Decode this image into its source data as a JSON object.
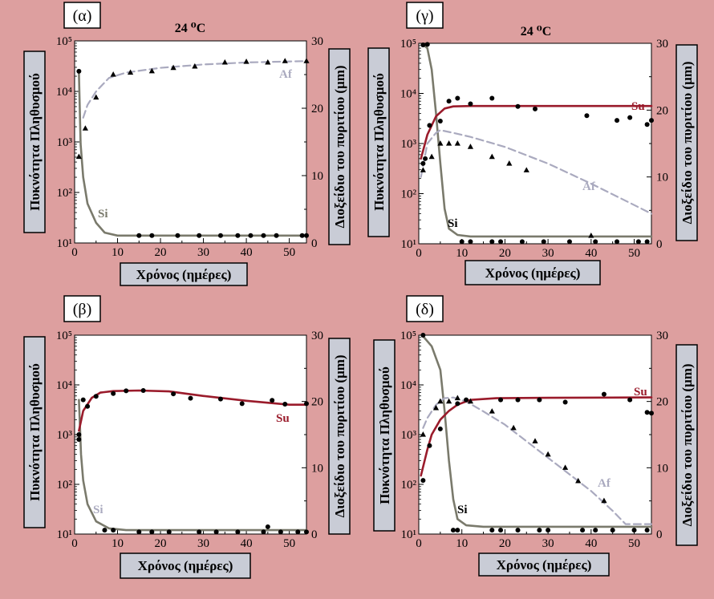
{
  "colors": {
    "background": "#dd9f9f",
    "plot_bg": "#ffffff",
    "label_box": "#c9ccd6",
    "Si": "#7a7a6c",
    "Af": "#aaaabf",
    "Su": "#9a1b2b",
    "points": "#000000"
  },
  "chart_data": [
    {
      "panel": "(α)",
      "type": "line",
      "title": "24 ⁰C",
      "xlabel": "Χρόνος (ημέρες)",
      "ylabel_left": "Πυκνότητα Πληθυσμού",
      "ylabel_right": "Διοξείδιο του πυριτίου (μm)",
      "x_ticks": [
        "0",
        "10",
        "20",
        "30",
        "40",
        "50"
      ],
      "y_left_scale": "log",
      "y_left_ticks": [
        "10¹",
        "10²",
        "10³",
        "10⁴",
        "10⁵"
      ],
      "y_right_ticks": [
        "0",
        "10",
        "20",
        "30"
      ],
      "xlim": [
        0,
        54
      ],
      "ylim_left": [
        10,
        100000
      ],
      "ylim_right": [
        0,
        30
      ],
      "series": [
        {
          "name": "Si",
          "kind": "silica",
          "line": [
            [
              1,
              22000
            ],
            [
              1.4,
              900
            ],
            [
              2,
              200
            ],
            [
              3,
              60
            ],
            [
              5,
              25
            ],
            [
              7,
              16
            ],
            [
              10,
              14
            ],
            [
              54,
              14
            ]
          ],
          "points": [
            [
              1,
              25000
            ],
            [
              15,
              14
            ],
            [
              18,
              14
            ],
            [
              24,
              14
            ],
            [
              29,
              14
            ],
            [
              34,
              14
            ],
            [
              38,
              14
            ],
            [
              41,
              14
            ],
            [
              44,
              14
            ],
            [
              47,
              14
            ],
            [
              53,
              14
            ],
            [
              54,
              14
            ]
          ]
        },
        {
          "name": "Af",
          "kind": "Af",
          "line": [
            [
              2,
              18.6
            ],
            [
              3,
              20.5
            ],
            [
              5,
              22.5
            ],
            [
              8,
              24.5
            ],
            [
              12,
              25.3
            ],
            [
              20,
              26
            ],
            [
              30,
              26.5
            ],
            [
              40,
              26.8
            ],
            [
              54,
              27
            ]
          ],
          "points": [
            [
              1,
              12.8
            ],
            [
              2.5,
              17
            ],
            [
              5,
              21.6
            ],
            [
              9,
              25
            ],
            [
              13,
              25.3
            ],
            [
              18,
              25.5
            ],
            [
              23,
              26
            ],
            [
              28,
              26.2
            ],
            [
              35,
              26.8
            ],
            [
              40,
              26.9
            ],
            [
              45,
              26.8
            ],
            [
              49,
              27
            ],
            [
              54,
              27
            ]
          ]
        }
      ]
    },
    {
      "panel": "(γ)",
      "type": "line",
      "title": "24 ⁰C",
      "xlabel": "Χρόνος (ημέρες)",
      "ylabel_left": "Πυκνότητα Πληθυσμού",
      "ylabel_right": "Διοξείδιο του πυριτίου (μm)",
      "x_ticks": [
        "0",
        "10",
        "20",
        "30",
        "40",
        "50"
      ],
      "y_left_scale": "log",
      "y_left_ticks": [
        "10¹",
        "10²",
        "10³",
        "10⁴",
        "10⁵"
      ],
      "y_right_ticks": [
        "0",
        "10",
        "20",
        "30"
      ],
      "xlim": [
        0,
        54
      ],
      "ylim_left": [
        10,
        100000
      ],
      "ylim_right": [
        0,
        30
      ],
      "series": [
        {
          "name": "Si",
          "kind": "silica",
          "line": [
            [
              1,
              95000
            ],
            [
              2,
              80000
            ],
            [
              3,
              30000
            ],
            [
              4,
              4000
            ],
            [
              5,
              400
            ],
            [
              6,
              50
            ],
            [
              7,
              20
            ],
            [
              9,
              15
            ],
            [
              12,
              14
            ],
            [
              54,
              14
            ]
          ],
          "points": [
            [
              1,
              93000
            ],
            [
              2,
              95000
            ],
            [
              10,
              11
            ],
            [
              12,
              11
            ],
            [
              17,
              11
            ],
            [
              19,
              11
            ],
            [
              24,
              11
            ],
            [
              29,
              11
            ],
            [
              35,
              11
            ],
            [
              41,
              11
            ],
            [
              46,
              11
            ],
            [
              51,
              11
            ],
            [
              53,
              11
            ]
          ]
        },
        {
          "name": "Af",
          "kind": "Af",
          "line": [
            [
              0.5,
              10
            ],
            [
              2,
              15
            ],
            [
              4,
              16.6
            ],
            [
              5,
              17
            ],
            [
              8,
              16.6
            ],
            [
              12,
              16
            ],
            [
              20,
              14.5
            ],
            [
              30,
              12
            ],
            [
              40,
              9
            ],
            [
              50,
              5.8
            ],
            [
              54,
              4.5
            ]
          ],
          "points": [
            [
              1,
              11
            ],
            [
              3,
              13
            ],
            [
              5,
              15
            ],
            [
              7,
              15
            ],
            [
              9,
              15
            ],
            [
              12,
              14.5
            ],
            [
              17,
              13
            ],
            [
              21,
              12
            ],
            [
              25,
              11
            ],
            [
              40,
              1.2
            ]
          ]
        },
        {
          "name": "Su",
          "kind": "Su",
          "line": [
            [
              0.5,
              500
            ],
            [
              2,
              1500
            ],
            [
              4,
              3500
            ],
            [
              6,
              5000
            ],
            [
              8,
              5500
            ],
            [
              12,
              5600
            ],
            [
              20,
              5600
            ],
            [
              54,
              5600
            ]
          ],
          "points": [
            [
              1,
              400
            ],
            [
              1.5,
              500
            ],
            [
              2.5,
              2300
            ],
            [
              5,
              2800
            ],
            [
              7,
              7000
            ],
            [
              9,
              8000
            ],
            [
              12,
              6200
            ],
            [
              17,
              8000
            ],
            [
              23,
              5500
            ],
            [
              27,
              4900
            ],
            [
              39,
              3600
            ],
            [
              46,
              2900
            ],
            [
              49,
              3300
            ],
            [
              53,
              2400
            ],
            [
              54,
              2900
            ]
          ]
        }
      ]
    },
    {
      "panel": "(β)",
      "type": "line",
      "xlabel": "Χρόνος (ημέρες)",
      "ylabel_left": "Πυκνότητα Πληθυσμού",
      "ylabel_right": "Διοξείδιο του πυριτίου (μm)",
      "x_ticks": [
        "0",
        "10",
        "20",
        "30",
        "40",
        "50"
      ],
      "y_left_scale": "log",
      "y_left_ticks": [
        "10¹",
        "10²",
        "10³",
        "10⁴",
        "10⁵"
      ],
      "y_right_ticks": [
        "0",
        "10",
        "20",
        "30"
      ],
      "xlim": [
        0,
        54
      ],
      "ylim_left": [
        10,
        100000
      ],
      "ylim_right": [
        0,
        30
      ],
      "series": [
        {
          "name": "Si",
          "kind": "silica",
          "line": [
            [
              1,
              5000
            ],
            [
              1.5,
              400
            ],
            [
              2,
              120
            ],
            [
              3,
              40
            ],
            [
              5,
              18
            ],
            [
              8,
              13
            ],
            [
              12,
              12
            ],
            [
              54,
              12
            ]
          ],
          "points": [
            [
              1,
              800
            ],
            [
              7,
              12
            ],
            [
              9,
              12
            ],
            [
              15,
              11
            ],
            [
              18,
              11
            ],
            [
              22,
              11
            ],
            [
              29,
              11
            ],
            [
              33,
              11
            ],
            [
              38,
              11
            ],
            [
              44,
              11
            ],
            [
              45,
              14
            ],
            [
              48,
              11
            ],
            [
              52,
              11
            ],
            [
              54,
              11
            ]
          ]
        },
        {
          "name": "Su",
          "kind": "Su",
          "line": [
            [
              1,
              1200
            ],
            [
              2,
              3000
            ],
            [
              4,
              5500
            ],
            [
              6,
              7000
            ],
            [
              9,
              7500
            ],
            [
              15,
              7700
            ],
            [
              22,
              7400
            ],
            [
              30,
              6000
            ],
            [
              40,
              4800
            ],
            [
              50,
              4000
            ],
            [
              54,
              4000
            ]
          ],
          "points": [
            [
              1,
              1000
            ],
            [
              2,
              5000
            ],
            [
              3,
              3700
            ],
            [
              5,
              5900
            ],
            [
              9,
              6700
            ],
            [
              12,
              7600
            ],
            [
              16,
              7700
            ],
            [
              23,
              6600
            ],
            [
              27,
              5400
            ],
            [
              34,
              5200
            ],
            [
              39,
              4200
            ],
            [
              46,
              4900
            ],
            [
              49,
              4100
            ],
            [
              54,
              4200
            ]
          ]
        }
      ]
    },
    {
      "panel": "(δ)",
      "type": "line",
      "xlabel": "Χρόνος (ημέρες)",
      "ylabel_left": "Πυκνότητα Πληθυσμού",
      "ylabel_right": "Διοξείδιο του πυριτίου (μm)",
      "x_ticks": [
        "0",
        "10",
        "20",
        "30",
        "40",
        "50"
      ],
      "y_left_scale": "log",
      "y_left_ticks": [
        "10¹",
        "10²",
        "10³",
        "10⁴",
        "10⁵"
      ],
      "y_right_ticks": [
        "0",
        "10",
        "20",
        "30"
      ],
      "xlim": [
        0,
        54
      ],
      "ylim_left": [
        10,
        100000
      ],
      "ylim_right": [
        0,
        30
      ],
      "series": [
        {
          "name": "Si",
          "kind": "silica",
          "line": [
            [
              1,
              95000
            ],
            [
              3,
              60000
            ],
            [
              5,
              20000
            ],
            [
              6,
              3000
            ],
            [
              7,
              300
            ],
            [
              8,
              50
            ],
            [
              9,
              20
            ],
            [
              11,
              15
            ],
            [
              15,
              14
            ],
            [
              54,
              14
            ]
          ],
          "points": [
            [
              1,
              100000
            ],
            [
              8,
              12
            ],
            [
              9,
              12
            ],
            [
              17,
              12
            ],
            [
              19,
              12
            ],
            [
              23,
              12
            ],
            [
              28,
              12
            ],
            [
              30,
              12
            ],
            [
              38,
              12
            ],
            [
              41,
              12
            ],
            [
              45,
              12
            ],
            [
              50,
              12
            ],
            [
              53,
              12
            ]
          ]
        },
        {
          "name": "Af",
          "kind": "Af",
          "line": [
            [
              1,
              16
            ],
            [
              2,
              17.5
            ],
            [
              4,
              19.5
            ],
            [
              6,
              20.5
            ],
            [
              8,
              20.6
            ],
            [
              11,
              20
            ],
            [
              15,
              18.5
            ],
            [
              20,
              16.5
            ],
            [
              25,
              14
            ],
            [
              30,
              11.5
            ],
            [
              35,
              9
            ],
            [
              40,
              6.5
            ],
            [
              45,
              3.5
            ],
            [
              48,
              1.5
            ],
            [
              54,
              1.5
            ]
          ],
          "points": [
            [
              1,
              15
            ],
            [
              4,
              19
            ],
            [
              5,
              20
            ],
            [
              7,
              20
            ],
            [
              9,
              20.5
            ],
            [
              12,
              20
            ],
            [
              17,
              18.5
            ],
            [
              22,
              16
            ],
            [
              27,
              14
            ],
            [
              30,
              12
            ],
            [
              34,
              10
            ],
            [
              37,
              8
            ],
            [
              43,
              5
            ]
          ]
        },
        {
          "name": "Su",
          "kind": "Su",
          "line": [
            [
              0.5,
              150
            ],
            [
              2,
              500
            ],
            [
              3,
              1000
            ],
            [
              5,
              2000
            ],
            [
              7,
              3000
            ],
            [
              9,
              4000
            ],
            [
              12,
              5000
            ],
            [
              18,
              5400
            ],
            [
              30,
              5500
            ],
            [
              54,
              5600
            ]
          ],
          "points": [
            [
              1,
              120
            ],
            [
              2.5,
              600
            ],
            [
              5,
              1300
            ],
            [
              9,
              4200
            ],
            [
              11,
              5000
            ],
            [
              19,
              5000
            ],
            [
              23,
              5000
            ],
            [
              28,
              5000
            ],
            [
              34,
              4500
            ],
            [
              43,
              6500
            ],
            [
              49,
              5000
            ],
            [
              53,
              2800
            ],
            [
              54,
              2700
            ]
          ]
        }
      ]
    }
  ]
}
